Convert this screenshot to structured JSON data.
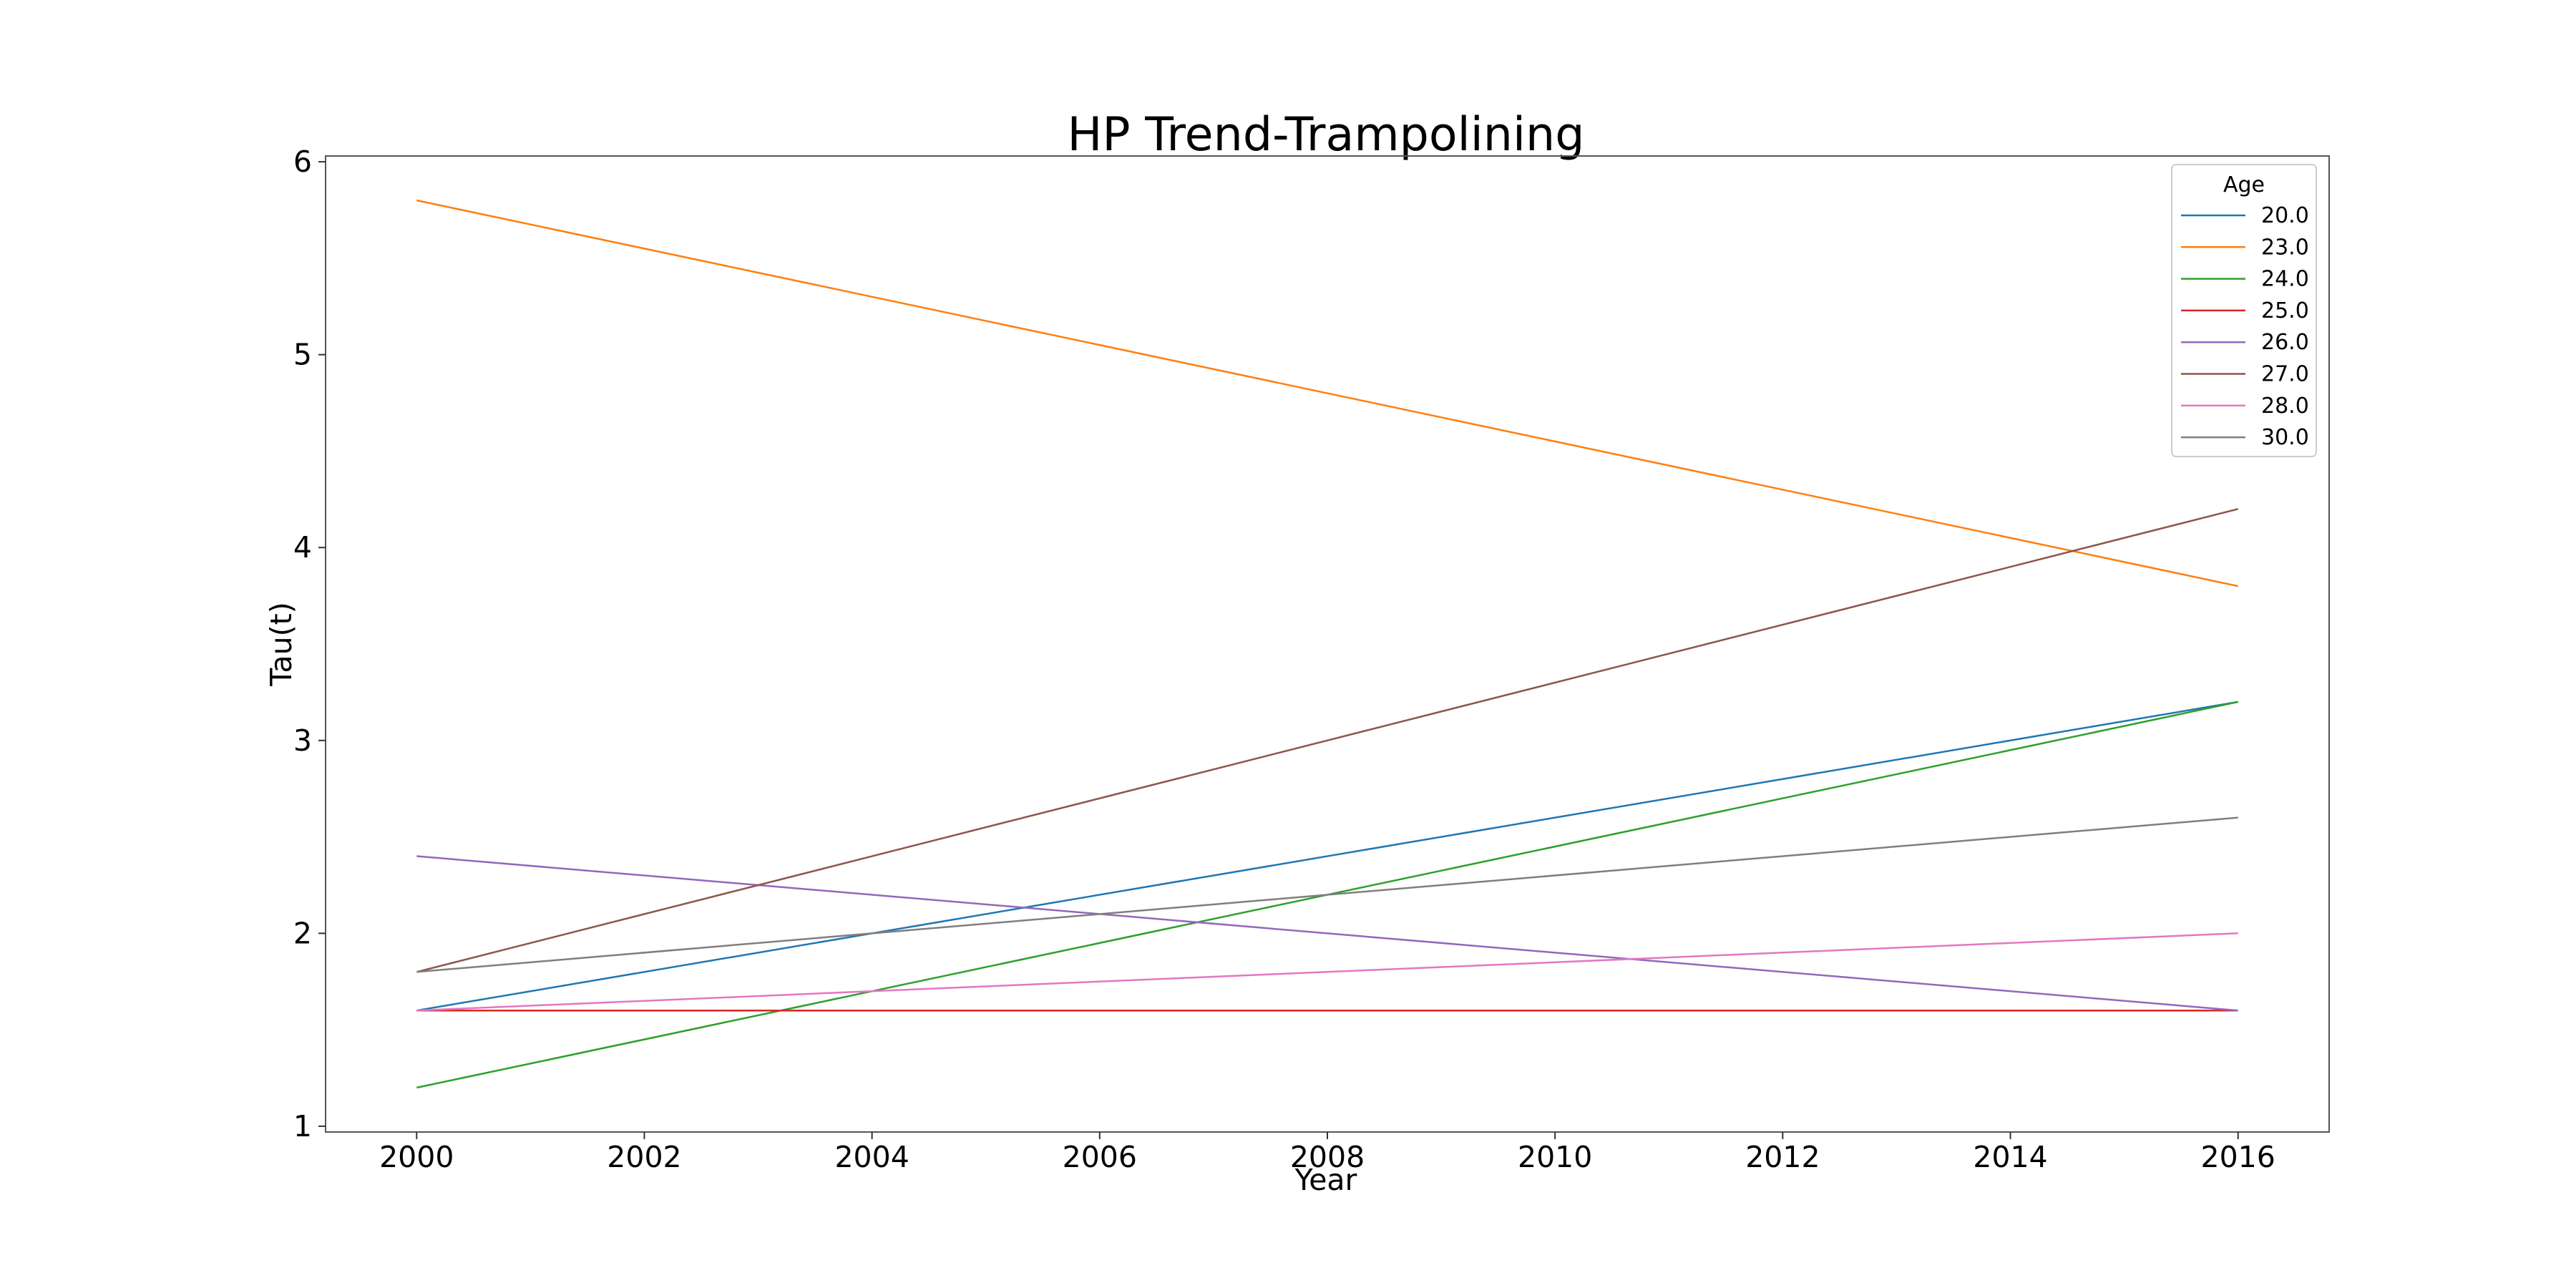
{
  "chart_data": {
    "type": "line",
    "title": "HP Trend-Trampolining",
    "xlabel": "Year",
    "ylabel": "Tau(t)",
    "x": [
      2000,
      2016
    ],
    "xticks": [
      2000,
      2002,
      2004,
      2006,
      2008,
      2010,
      2012,
      2014,
      2016
    ],
    "xtick_labels": [
      "2000",
      "2002",
      "2004",
      "2006",
      "2008",
      "2010",
      "2012",
      "2014",
      "2016"
    ],
    "yticks": [
      1,
      2,
      3,
      4,
      5,
      6
    ],
    "ytick_labels": [
      "1",
      "2",
      "3",
      "4",
      "5",
      "6"
    ],
    "xlim": [
      1999.2,
      2016.8
    ],
    "ylim": [
      0.97,
      6.03
    ],
    "grid": false,
    "legend": {
      "title": "Age",
      "placement": "top-right"
    },
    "series": [
      {
        "name": "20.0",
        "color": "#1f77b4",
        "values": [
          1.6,
          3.2
        ]
      },
      {
        "name": "23.0",
        "color": "#ff7f0e",
        "values": [
          5.8,
          3.8
        ]
      },
      {
        "name": "24.0",
        "color": "#2ca02c",
        "values": [
          1.2,
          3.2
        ]
      },
      {
        "name": "25.0",
        "color": "#d62728",
        "values": [
          1.6,
          1.6
        ]
      },
      {
        "name": "26.0",
        "color": "#9467bd",
        "values": [
          2.4,
          1.6
        ]
      },
      {
        "name": "27.0",
        "color": "#8c564b",
        "values": [
          1.8,
          4.2
        ]
      },
      {
        "name": "28.0",
        "color": "#e377c2",
        "values": [
          1.6,
          2.0
        ]
      },
      {
        "name": "30.0",
        "color": "#7f7f7f",
        "values": [
          1.8,
          2.6
        ]
      }
    ]
  }
}
